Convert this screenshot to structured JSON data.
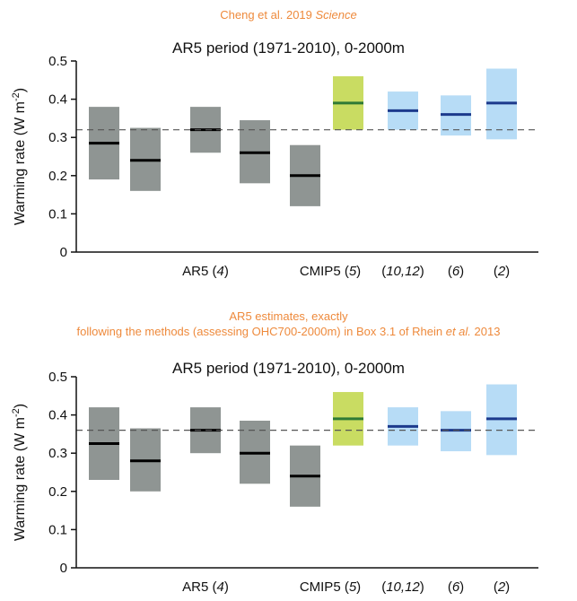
{
  "source": {
    "text": "Cheng et al. 2019 ",
    "italic": "Science"
  },
  "note2": {
    "line1": "AR5 estimates, exactly",
    "line2a": "following the methods (assessing OHC700-2000m)  in Box 3.1 of Rhein ",
    "line2b": "et al.",
    "line2c": " 2013"
  },
  "colors": {
    "ar5_box": "#8f9593",
    "ar5_line": "#000000",
    "cmip5_box": "#c9dc62",
    "cmip5_line": "#2e7a35",
    "obs_box": "#b7dcf6",
    "obs_line": "#1c3a8c",
    "ref_line": "#555555",
    "source_text": "#ee8a3c"
  },
  "chart_data": [
    {
      "type": "bar",
      "title": "AR5 period (1971-2010), 0-2000m",
      "ylabel": "Warming rate (W m-2)",
      "ylabel_parts": {
        "main": "Warming rate (W m",
        "sup": "-2",
        "close": ")"
      },
      "ylim": [
        0,
        0.5
      ],
      "yticks": [
        "0",
        "0.1",
        "0.2",
        "0.3",
        "0.4",
        "0.5"
      ],
      "reference_line": 0.32,
      "groups": [
        {
          "label": "AR5",
          "ref": "4",
          "boxes": [
            {
              "low": 0.19,
              "high": 0.38,
              "mid": 0.285
            },
            {
              "low": 0.16,
              "high": 0.325,
              "mid": 0.24
            },
            {
              "low": 0.26,
              "high": 0.38,
              "mid": 0.32
            },
            {
              "low": 0.18,
              "high": 0.345,
              "mid": 0.26
            },
            {
              "low": 0.12,
              "high": 0.28,
              "mid": 0.2
            }
          ]
        },
        {
          "label": "CMIP5",
          "ref": "5",
          "boxes": [
            {
              "low": 0.32,
              "high": 0.46,
              "mid": 0.39
            }
          ]
        },
        {
          "label": "",
          "ref": "10,12",
          "boxes": [
            {
              "low": 0.32,
              "high": 0.42,
              "mid": 0.37
            }
          ]
        },
        {
          "label": "",
          "ref": "6",
          "boxes": [
            {
              "low": 0.305,
              "high": 0.41,
              "mid": 0.36
            }
          ]
        },
        {
          "label": "",
          "ref": "2",
          "boxes": [
            {
              "low": 0.295,
              "high": 0.48,
              "mid": 0.39
            }
          ]
        }
      ]
    },
    {
      "type": "bar",
      "title": "AR5 period (1971-2010), 0-2000m",
      "ylabel": "Warming rate (W m-2)",
      "ylabel_parts": {
        "main": "Warming rate (W m",
        "sup": "-2",
        "close": ")"
      },
      "ylim": [
        0,
        0.5
      ],
      "yticks": [
        "0",
        "0.1",
        "0.2",
        "0.3",
        "0.4",
        "0.5"
      ],
      "reference_line": 0.36,
      "groups": [
        {
          "label": "AR5",
          "ref": "4",
          "boxes": [
            {
              "low": 0.23,
              "high": 0.42,
              "mid": 0.325
            },
            {
              "low": 0.2,
              "high": 0.365,
              "mid": 0.28
            },
            {
              "low": 0.3,
              "high": 0.42,
              "mid": 0.36
            },
            {
              "low": 0.22,
              "high": 0.385,
              "mid": 0.3
            },
            {
              "low": 0.16,
              "high": 0.32,
              "mid": 0.24
            }
          ]
        },
        {
          "label": "CMIP5",
          "ref": "5",
          "boxes": [
            {
              "low": 0.32,
              "high": 0.46,
              "mid": 0.39
            }
          ]
        },
        {
          "label": "",
          "ref": "10,12",
          "boxes": [
            {
              "low": 0.32,
              "high": 0.42,
              "mid": 0.37
            }
          ]
        },
        {
          "label": "",
          "ref": "6",
          "boxes": [
            {
              "low": 0.305,
              "high": 0.41,
              "mid": 0.36
            }
          ]
        },
        {
          "label": "",
          "ref": "2",
          "boxes": [
            {
              "low": 0.295,
              "high": 0.48,
              "mid": 0.39
            }
          ]
        }
      ]
    }
  ]
}
